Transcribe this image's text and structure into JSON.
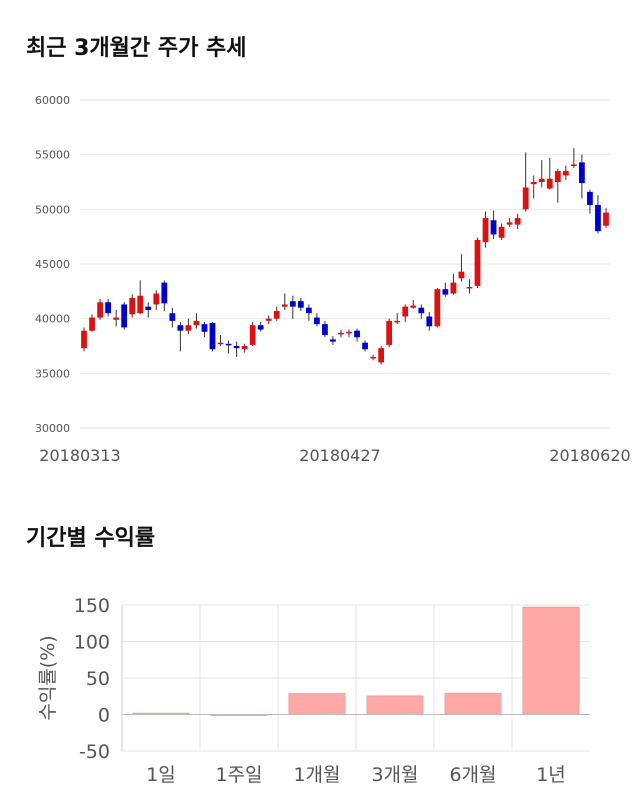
{
  "sections": {
    "price_title": "최근 3개월간 주가 추세",
    "return_title": "기간별 수익률"
  },
  "chart_data": [
    {
      "type": "candlestick",
      "title": "최근 3개월간 주가 추세",
      "ylim": [
        30000,
        60000
      ],
      "y_ticks": [
        "60000",
        "55000",
        "50000",
        "45000",
        "40000",
        "35000",
        "30000"
      ],
      "x_ticks": [
        "20180313",
        "20180427",
        "20180620"
      ],
      "grid": true,
      "up_color": "#dd1111",
      "down_color": "#0000cc",
      "candles": [
        [
          37300,
          38900,
          39200,
          37000
        ],
        [
          38900,
          40100,
          40400,
          38800
        ],
        [
          40100,
          41500,
          41800,
          39900
        ],
        [
          41500,
          40500,
          41800,
          40200
        ],
        [
          39900,
          40100,
          40800,
          39300
        ],
        [
          41300,
          39200,
          41500,
          39000
        ],
        [
          40400,
          41900,
          42200,
          40100
        ],
        [
          40500,
          42100,
          43500,
          40400
        ],
        [
          41100,
          40800,
          41500,
          40100
        ],
        [
          41300,
          42300,
          42600,
          40800
        ],
        [
          43300,
          41400,
          43500,
          40700
        ],
        [
          40500,
          39800,
          41000,
          39200
        ],
        [
          39400,
          38900,
          39700,
          37000
        ],
        [
          38900,
          39400,
          40000,
          38600
        ],
        [
          39400,
          39800,
          40500,
          39100
        ],
        [
          39500,
          38800,
          39700,
          38300
        ],
        [
          39600,
          37200,
          39700,
          37000
        ],
        [
          37700,
          37800,
          38500,
          37500
        ],
        [
          37700,
          37600,
          38000,
          36800
        ],
        [
          37500,
          37300,
          37900,
          36500
        ],
        [
          37200,
          37500,
          37700,
          36900
        ],
        [
          37600,
          39400,
          39700,
          37500
        ],
        [
          39400,
          39000,
          39700,
          38800
        ],
        [
          39800,
          40000,
          40300,
          39500
        ],
        [
          40000,
          40700,
          41100,
          39800
        ],
        [
          41100,
          41300,
          42300,
          40800
        ],
        [
          41600,
          41100,
          42100,
          40000
        ],
        [
          41600,
          41000,
          41900,
          40700
        ],
        [
          41000,
          40500,
          41300,
          39800
        ],
        [
          40100,
          39500,
          40500,
          39300
        ],
        [
          39500,
          38500,
          39800,
          38300
        ],
        [
          38100,
          37900,
          38400,
          37600
        ],
        [
          38700,
          38700,
          39000,
          38300
        ],
        [
          38700,
          38800,
          39000,
          38300
        ],
        [
          38900,
          38300,
          39100,
          37900
        ],
        [
          37800,
          37200,
          38000,
          37000
        ],
        [
          36500,
          36500,
          36700,
          36200
        ],
        [
          36000,
          37300,
          37500,
          35800
        ],
        [
          37600,
          39800,
          40000,
          37400
        ],
        [
          39800,
          39800,
          40500,
          39500
        ],
        [
          40200,
          41100,
          41300,
          39700
        ],
        [
          41000,
          41200,
          41700,
          40900
        ],
        [
          41000,
          40500,
          41300,
          40000
        ],
        [
          40200,
          39300,
          40600,
          38900
        ],
        [
          39300,
          42700,
          42800,
          39200
        ],
        [
          42700,
          42200,
          43300,
          42000
        ],
        [
          42300,
          43300,
          44100,
          42200
        ],
        [
          43700,
          44300,
          45900,
          43400
        ],
        [
          42800,
          42900,
          43600,
          42300
        ],
        [
          43000,
          47200,
          47400,
          42800
        ],
        [
          47000,
          49200,
          49800,
          46500
        ],
        [
          49000,
          47700,
          49900,
          47300
        ],
        [
          47400,
          48400,
          48700,
          47200
        ],
        [
          48600,
          48800,
          49200,
          48400
        ],
        [
          48600,
          49200,
          49600,
          48200
        ],
        [
          50000,
          52000,
          55200,
          49800
        ],
        [
          52300,
          52500,
          53100,
          51000
        ],
        [
          52500,
          52800,
          54500,
          52000
        ],
        [
          51900,
          52800,
          54700,
          51800
        ],
        [
          52500,
          53500,
          53700,
          50600
        ],
        [
          53100,
          53500,
          54000,
          52700
        ],
        [
          54000,
          54100,
          55600,
          53800
        ],
        [
          54300,
          52400,
          55000,
          51000
        ],
        [
          51600,
          50400,
          51800,
          49600
        ],
        [
          50400,
          48000,
          51300,
          47800
        ],
        [
          48500,
          49700,
          50100,
          48300
        ]
      ]
    },
    {
      "type": "bar",
      "categories": [
        "1일",
        "1주일",
        "1개월",
        "3개월",
        "6개월",
        "1년"
      ],
      "values": [
        1.8,
        -0.6,
        28.7,
        25.5,
        29.1,
        147.1
      ],
      "ylabel": "수익률(%)",
      "ylim": [
        -50,
        150
      ],
      "y_ticks": [
        "150",
        "100",
        "50",
        "0",
        "-50"
      ],
      "grid": true,
      "bar_color": "#ffa8a8"
    }
  ]
}
